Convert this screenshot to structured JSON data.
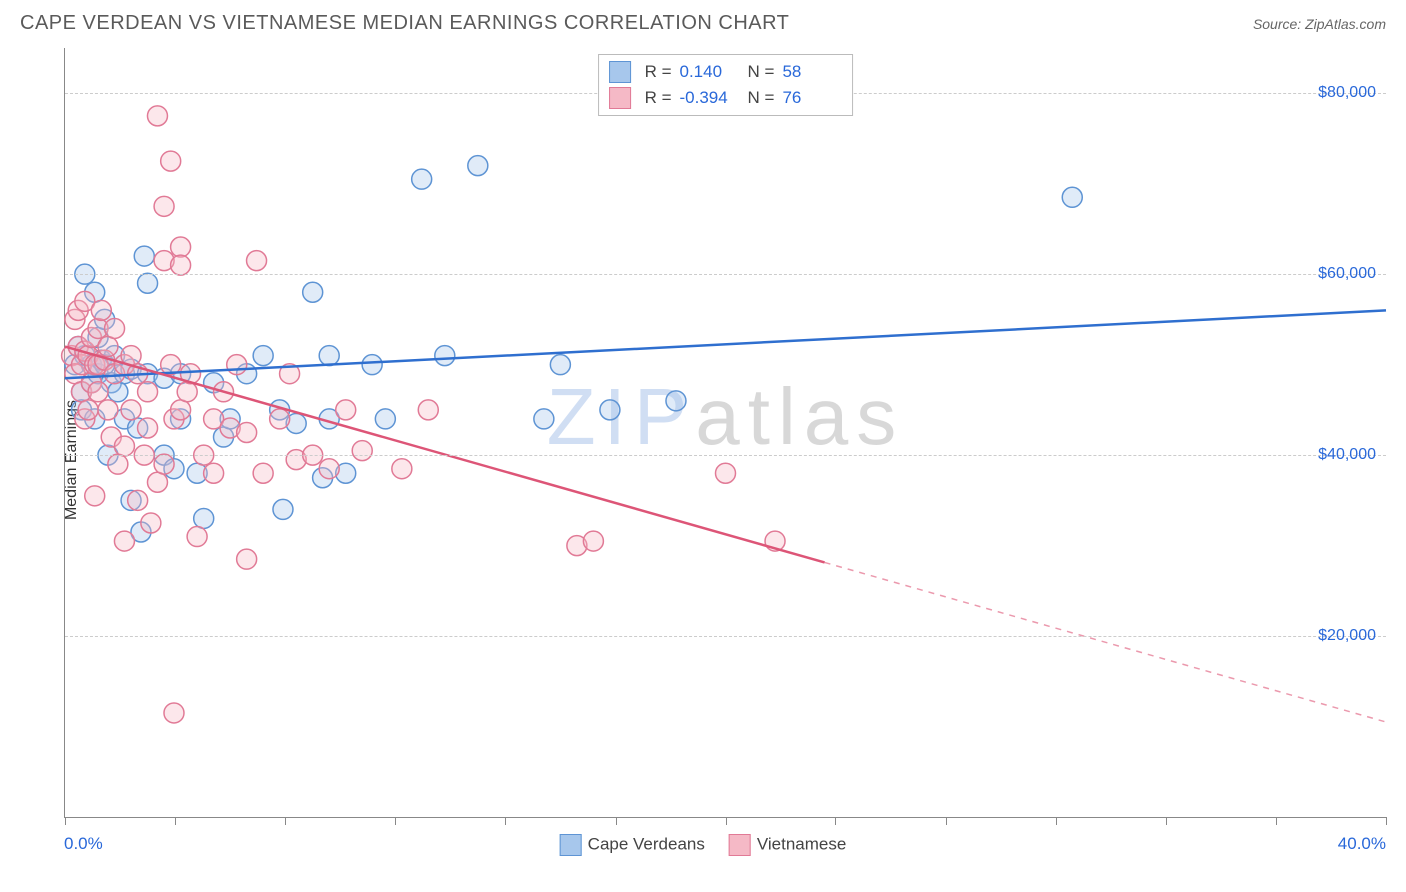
{
  "title": "CAPE VERDEAN VS VIETNAMESE MEDIAN EARNINGS CORRELATION CHART",
  "source_prefix": "Source: ",
  "source_name": "ZipAtlas.com",
  "ylabel": "Median Earnings",
  "watermark_a": "ZIP",
  "watermark_b": "atlas",
  "chart": {
    "type": "scatter-with-regression",
    "xlim": [
      0,
      40
    ],
    "ylim": [
      0,
      85000
    ],
    "xticks_minor": [
      0,
      3.33,
      6.67,
      10,
      13.33,
      16.67,
      20,
      23.33,
      26.67,
      30,
      33.33,
      36.67,
      40
    ],
    "xlabel_min": "0.0%",
    "xlabel_max": "40.0%",
    "ygrid": [
      {
        "value": 20000,
        "label": "$20,000"
      },
      {
        "value": 40000,
        "label": "$40,000"
      },
      {
        "value": 60000,
        "label": "$60,000"
      },
      {
        "value": 80000,
        "label": "$80,000"
      }
    ],
    "marker_radius": 10,
    "marker_stroke_width": 1.5,
    "marker_fill_opacity": 0.35,
    "line_width": 2.5,
    "background_color": "#ffffff",
    "grid_color": "#cccccc",
    "axis_color": "#888888",
    "tick_label_color": "#2968d9",
    "series": [
      {
        "key": "cape_verdeans",
        "label": "Cape Verdeans",
        "color_fill": "#a7c7ec",
        "color_stroke": "#5e94d4",
        "line_color": "#2f6fcf",
        "R": "0.140",
        "N": "58",
        "regression": {
          "x1": 0,
          "y1": 48500,
          "x2": 40,
          "y2": 56000,
          "solid_to_x": 40
        },
        "points": [
          [
            0.3,
            50000
          ],
          [
            0.4,
            52000
          ],
          [
            0.5,
            47000
          ],
          [
            0.5,
            45000
          ],
          [
            0.6,
            51000
          ],
          [
            0.6,
            60000
          ],
          [
            0.8,
            50000
          ],
          [
            0.8,
            48000
          ],
          [
            0.9,
            58000
          ],
          [
            0.9,
            44000
          ],
          [
            1.0,
            49000
          ],
          [
            1.0,
            53000
          ],
          [
            1.1,
            50500
          ],
          [
            1.2,
            55000
          ],
          [
            1.2,
            50000
          ],
          [
            1.3,
            40000
          ],
          [
            1.4,
            48000
          ],
          [
            1.5,
            51000
          ],
          [
            1.6,
            47000
          ],
          [
            1.8,
            44000
          ],
          [
            1.8,
            49000
          ],
          [
            2.0,
            35000
          ],
          [
            2.0,
            49500
          ],
          [
            2.2,
            43000
          ],
          [
            2.3,
            31500
          ],
          [
            2.4,
            62000
          ],
          [
            2.5,
            49000
          ],
          [
            2.5,
            59000
          ],
          [
            3.0,
            40000
          ],
          [
            3.0,
            48500
          ],
          [
            3.3,
            38500
          ],
          [
            3.5,
            49000
          ],
          [
            3.5,
            44000
          ],
          [
            4.0,
            38000
          ],
          [
            4.2,
            33000
          ],
          [
            4.5,
            48000
          ],
          [
            4.8,
            42000
          ],
          [
            5.0,
            44000
          ],
          [
            5.5,
            49000
          ],
          [
            6.0,
            51000
          ],
          [
            6.5,
            45000
          ],
          [
            6.6,
            34000
          ],
          [
            7.0,
            43500
          ],
          [
            7.5,
            58000
          ],
          [
            7.8,
            37500
          ],
          [
            8.0,
            51000
          ],
          [
            8.0,
            44000
          ],
          [
            8.5,
            38000
          ],
          [
            9.3,
            50000
          ],
          [
            9.7,
            44000
          ],
          [
            10.8,
            70500
          ],
          [
            11.5,
            51000
          ],
          [
            12.5,
            72000
          ],
          [
            14.5,
            44000
          ],
          [
            15.0,
            50000
          ],
          [
            16.5,
            45000
          ],
          [
            18.5,
            46000
          ],
          [
            30.5,
            68500
          ]
        ]
      },
      {
        "key": "vietnamese",
        "label": "Vietnamese",
        "color_fill": "#f5b9c6",
        "color_stroke": "#e17a96",
        "line_color": "#dd5577",
        "R": "-0.394",
        "N": "76",
        "regression": {
          "x1": 0,
          "y1": 52000,
          "x2": 40,
          "y2": 10500,
          "solid_to_x": 23
        },
        "points": [
          [
            0.2,
            51000
          ],
          [
            0.3,
            49000
          ],
          [
            0.3,
            55000
          ],
          [
            0.4,
            56000
          ],
          [
            0.4,
            52000
          ],
          [
            0.5,
            50000
          ],
          [
            0.5,
            47000
          ],
          [
            0.6,
            51500
          ],
          [
            0.6,
            57000
          ],
          [
            0.6,
            44000
          ],
          [
            0.7,
            45000
          ],
          [
            0.7,
            51000
          ],
          [
            0.8,
            53000
          ],
          [
            0.8,
            48000
          ],
          [
            0.9,
            50000
          ],
          [
            0.9,
            35500
          ],
          [
            1.0,
            54000
          ],
          [
            1.0,
            50000
          ],
          [
            1.0,
            47000
          ],
          [
            1.1,
            56000
          ],
          [
            1.2,
            50500
          ],
          [
            1.3,
            45000
          ],
          [
            1.3,
            52000
          ],
          [
            1.4,
            42000
          ],
          [
            1.5,
            49000
          ],
          [
            1.5,
            54000
          ],
          [
            1.6,
            39000
          ],
          [
            1.8,
            41000
          ],
          [
            1.8,
            50000
          ],
          [
            1.8,
            30500
          ],
          [
            2.0,
            45000
          ],
          [
            2.0,
            51000
          ],
          [
            2.2,
            35000
          ],
          [
            2.2,
            49000
          ],
          [
            2.4,
            40000
          ],
          [
            2.5,
            47000
          ],
          [
            2.5,
            43000
          ],
          [
            2.6,
            32500
          ],
          [
            2.8,
            77500
          ],
          [
            2.8,
            37000
          ],
          [
            3.0,
            67500
          ],
          [
            3.0,
            61500
          ],
          [
            3.0,
            39000
          ],
          [
            3.2,
            50000
          ],
          [
            3.2,
            72500
          ],
          [
            3.3,
            44000
          ],
          [
            3.3,
            11500
          ],
          [
            3.5,
            63000
          ],
          [
            3.5,
            45000
          ],
          [
            3.5,
            61000
          ],
          [
            3.7,
            47000
          ],
          [
            3.8,
            49000
          ],
          [
            4.0,
            31000
          ],
          [
            4.2,
            40000
          ],
          [
            4.5,
            44000
          ],
          [
            4.5,
            38000
          ],
          [
            4.8,
            47000
          ],
          [
            5.0,
            43000
          ],
          [
            5.2,
            50000
          ],
          [
            5.5,
            28500
          ],
          [
            5.5,
            42500
          ],
          [
            5.8,
            61500
          ],
          [
            6.0,
            38000
          ],
          [
            6.5,
            44000
          ],
          [
            6.8,
            49000
          ],
          [
            7.0,
            39500
          ],
          [
            7.5,
            40000
          ],
          [
            8.0,
            38500
          ],
          [
            8.5,
            45000
          ],
          [
            9.0,
            40500
          ],
          [
            10.2,
            38500
          ],
          [
            11.0,
            45000
          ],
          [
            15.5,
            30000
          ],
          [
            16.0,
            30500
          ],
          [
            20.0,
            38000
          ],
          [
            21.5,
            30500
          ]
        ]
      }
    ]
  },
  "stat_legend": {
    "r_label": "R =",
    "n_label": "N ="
  }
}
